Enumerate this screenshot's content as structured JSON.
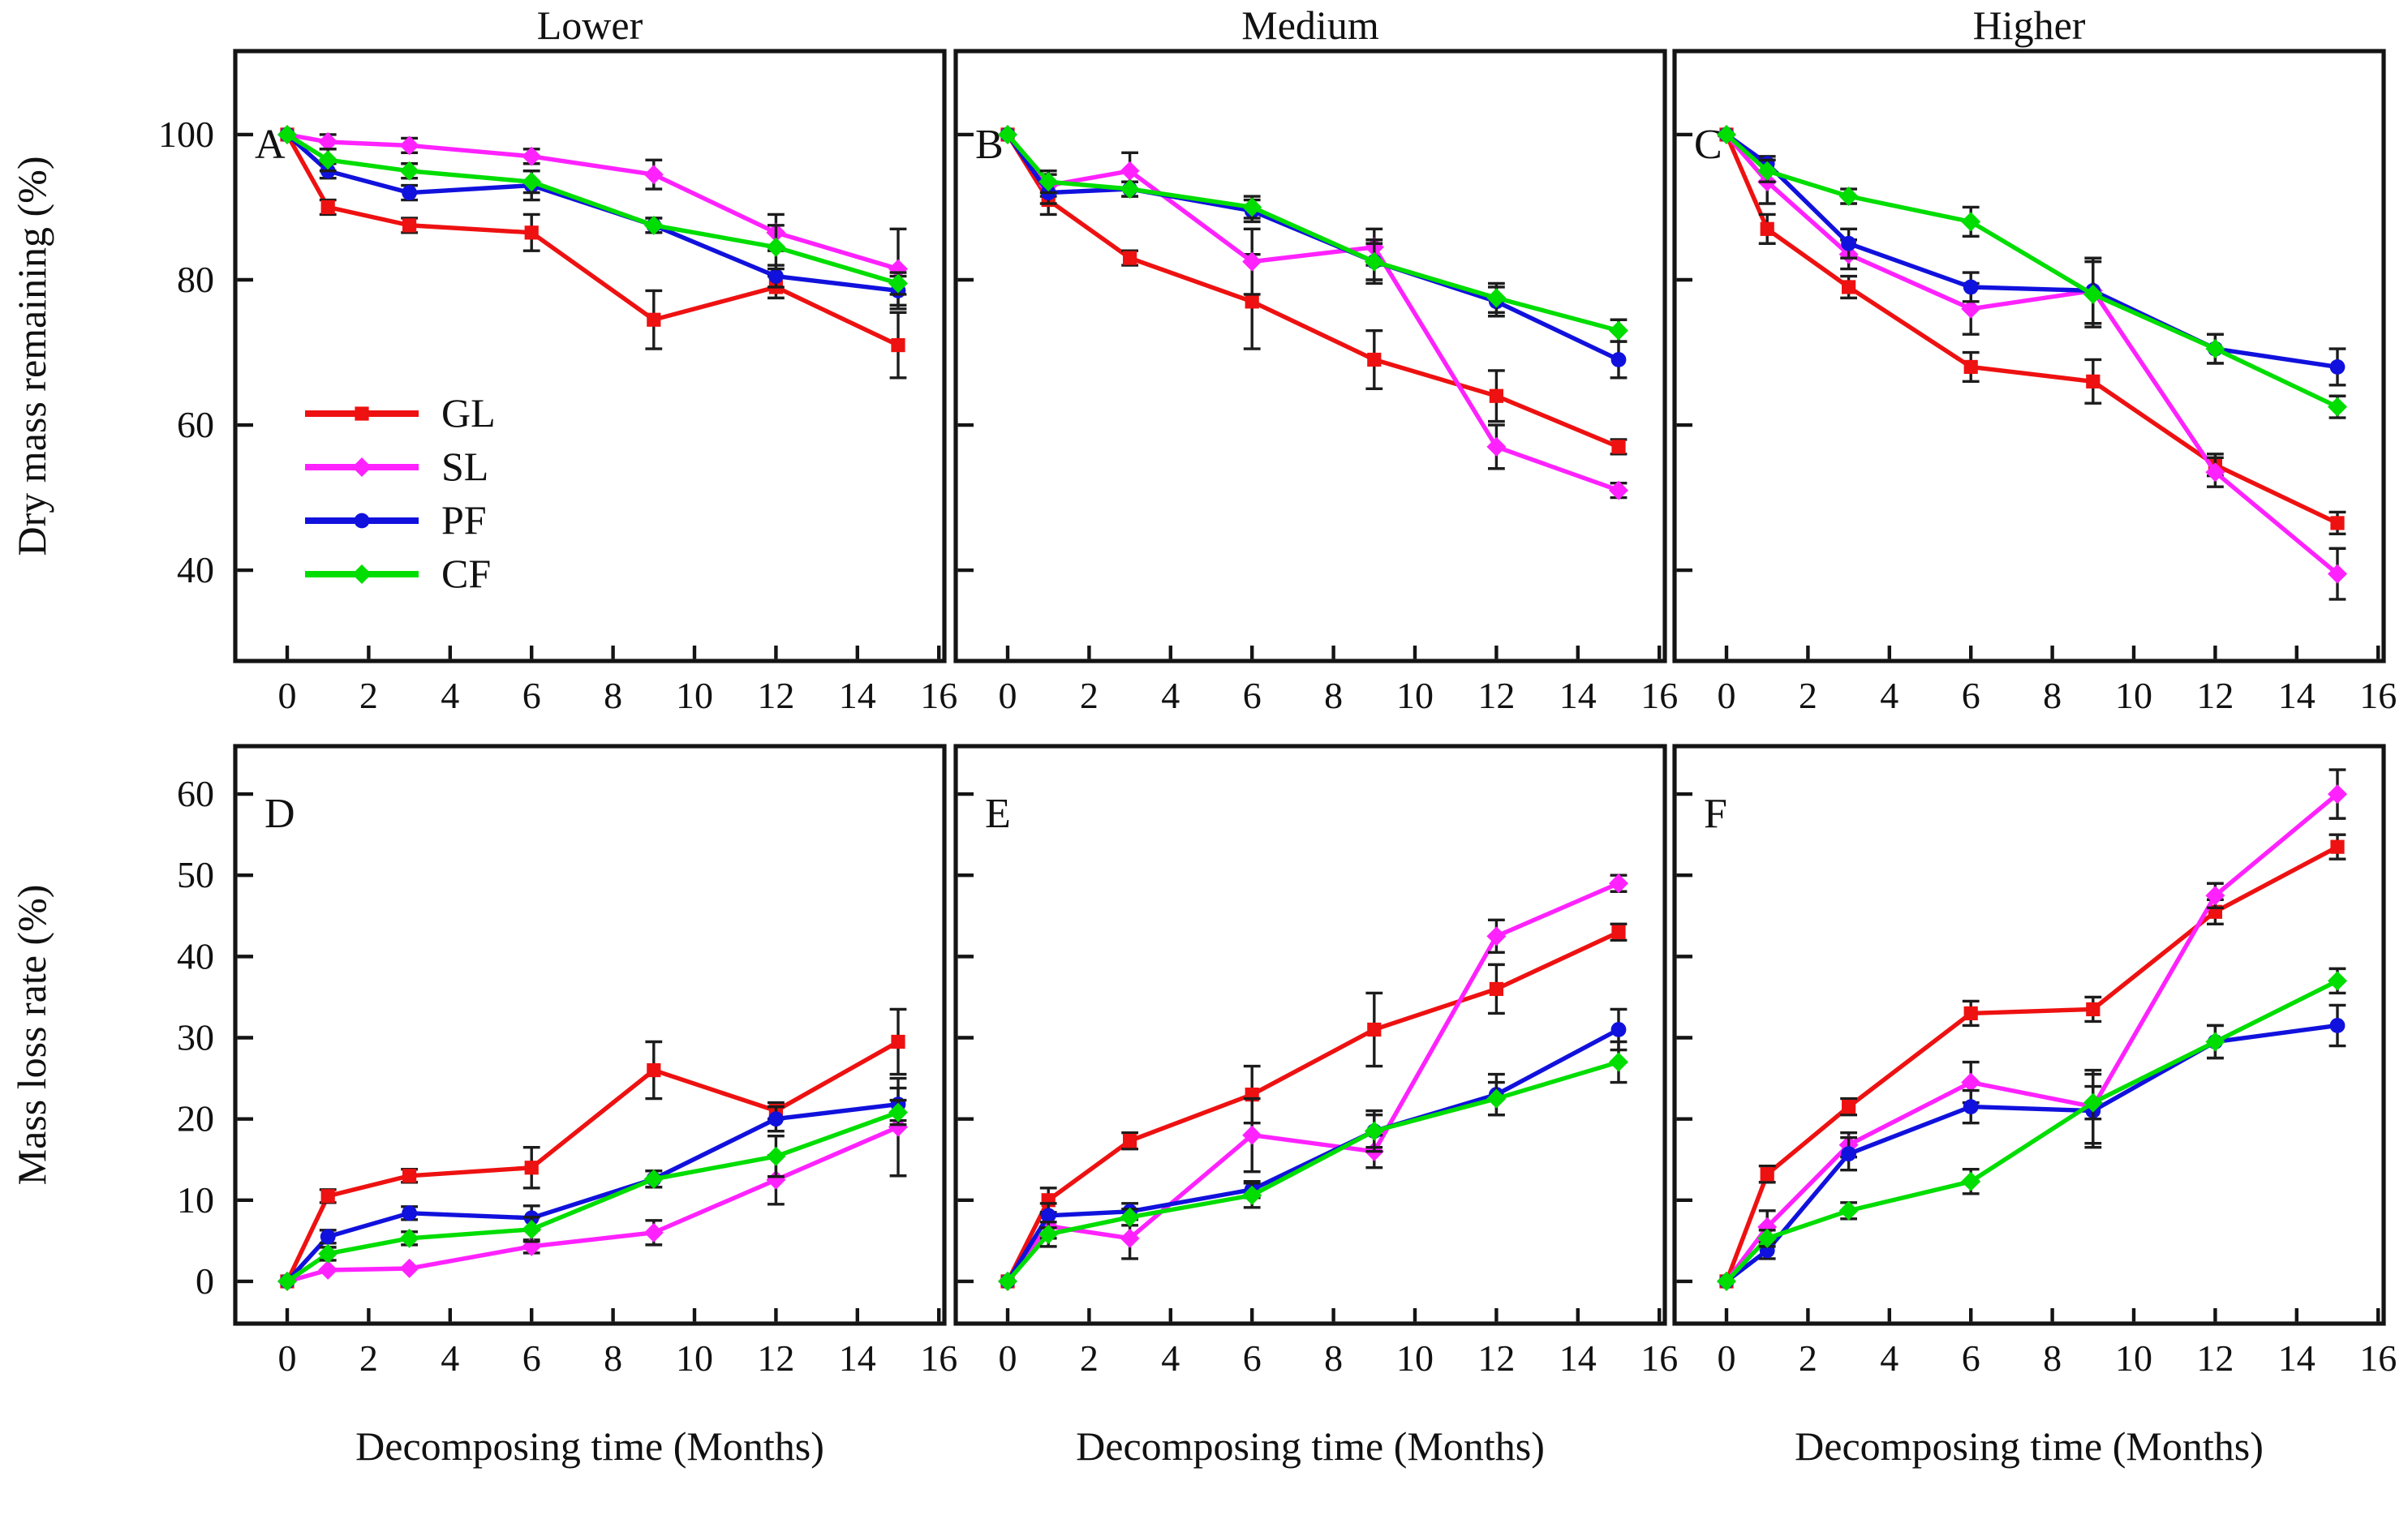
{
  "figure": {
    "column_titles": [
      "Lower",
      "Medium",
      "Higher"
    ],
    "x_axis_label": "Decomposing time (Months)",
    "row1_y_label": "Dry mass remaining (%)",
    "row2_y_label": "Mass loss rate (%)",
    "panel_letters": [
      "A",
      "B",
      "C",
      "D",
      "E",
      "F"
    ],
    "legend": [
      {
        "label": "GL",
        "color": "#ee1111",
        "marker": "square"
      },
      {
        "label": "SL",
        "color": "#ff22ff",
        "marker": "diamond"
      },
      {
        "label": "PF",
        "color": "#1111dd",
        "marker": "circle"
      },
      {
        "label": "CF",
        "color": "#00dd00",
        "marker": "diamond"
      }
    ]
  },
  "chart_data": [
    {
      "id": "A",
      "panel_label": "A",
      "type": "line",
      "title": "Lower",
      "row": 0,
      "col": 0,
      "ylabel": "Dry mass remaining (%)",
      "xlabel": null,
      "x": [
        0,
        1,
        3,
        6,
        9,
        12,
        15
      ],
      "xlim": [
        -1.3,
        16.15
      ],
      "ylim": [
        27.5,
        111.5
      ],
      "xticks": [
        0,
        2,
        4,
        6,
        8,
        10,
        12,
        14,
        16
      ],
      "yticks": [
        40,
        60,
        80,
        100
      ],
      "series": [
        {
          "name": "GL",
          "values": [
            100,
            90,
            87.5,
            86.5,
            74.5,
            79,
            71
          ],
          "errors": [
            0.5,
            1,
            1,
            2.5,
            4,
            1.5,
            4.5
          ]
        },
        {
          "name": "SL",
          "values": [
            100,
            99,
            98.5,
            97,
            94.5,
            86.5,
            81.5
          ],
          "errors": [
            0.5,
            1,
            1,
            1,
            2,
            2.5,
            5.5
          ]
        },
        {
          "name": "PF",
          "values": [
            100,
            95,
            92,
            93,
            87.5,
            80.5,
            78.5
          ],
          "errors": [
            0.5,
            1,
            1,
            2,
            1,
            1.5,
            2
          ]
        },
        {
          "name": "CF",
          "values": [
            100,
            96.5,
            95,
            93.5,
            87.5,
            84.5,
            79.5
          ],
          "errors": [
            0.5,
            1.5,
            1,
            1.5,
            1,
            3,
            1.5
          ]
        }
      ]
    },
    {
      "id": "B",
      "panel_label": "B",
      "type": "line",
      "title": "Medium",
      "row": 0,
      "col": 1,
      "ylabel": "Dry mass remaining (%)",
      "xlabel": null,
      "x": [
        0,
        1,
        3,
        6,
        9,
        12,
        15
      ],
      "xlim": [
        -1.3,
        16.15
      ],
      "ylim": [
        27.5,
        111.5
      ],
      "xticks": [
        0,
        2,
        4,
        6,
        8,
        10,
        12,
        14,
        16
      ],
      "yticks": [
        40,
        60,
        80,
        100
      ],
      "series": [
        {
          "name": "GL",
          "values": [
            100,
            91,
            83,
            77,
            69,
            64,
            57
          ],
          "errors": [
            0.5,
            2,
            1,
            6.5,
            4,
            3.5,
            1
          ]
        },
        {
          "name": "SL",
          "values": [
            100,
            93,
            95,
            82.5,
            84.5,
            57,
            51
          ],
          "errors": [
            0.5,
            1.5,
            2.5,
            4.5,
            2.5,
            3,
            1
          ]
        },
        {
          "name": "PF",
          "values": [
            100,
            92,
            92.5,
            89.5,
            82.5,
            77,
            69
          ],
          "errors": [
            0.5,
            1.5,
            1,
            1.5,
            2.5,
            2,
            2.5
          ]
        },
        {
          "name": "CF",
          "values": [
            100,
            93.5,
            92.5,
            90,
            82.5,
            77.5,
            73
          ],
          "errors": [
            0.5,
            1.5,
            1,
            1.5,
            3,
            2,
            1.5
          ]
        }
      ]
    },
    {
      "id": "C",
      "panel_label": "C",
      "type": "line",
      "title": "Higher",
      "row": 0,
      "col": 2,
      "ylabel": "Dry mass remaining (%)",
      "xlabel": null,
      "x": [
        0,
        1,
        3,
        6,
        9,
        12,
        15
      ],
      "xlim": [
        -1.3,
        16.15
      ],
      "ylim": [
        27.5,
        111.5
      ],
      "xticks": [
        0,
        2,
        4,
        6,
        8,
        10,
        12,
        14,
        16
      ],
      "yticks": [
        40,
        60,
        80,
        100
      ],
      "series": [
        {
          "name": "GL",
          "values": [
            100,
            87,
            79,
            68,
            66,
            54.5,
            46.5
          ],
          "errors": [
            0.5,
            2,
            1.5,
            2,
            3,
            1.5,
            1.5
          ]
        },
        {
          "name": "SL",
          "values": [
            100,
            93.5,
            83.5,
            76,
            78.5,
            53.5,
            39.5
          ],
          "errors": [
            0.5,
            3,
            2,
            3.5,
            4.5,
            2,
            3.5
          ]
        },
        {
          "name": "PF",
          "values": [
            100,
            96,
            85,
            79,
            78.5,
            70.5,
            68
          ],
          "errors": [
            0.5,
            1,
            2,
            2,
            4.5,
            2,
            2.5
          ]
        },
        {
          "name": "CF",
          "values": [
            100,
            95,
            91.5,
            88,
            78,
            70.5,
            62.5
          ],
          "errors": [
            0.5,
            1.5,
            1,
            2,
            4.5,
            2,
            1.5
          ]
        }
      ]
    },
    {
      "id": "D",
      "panel_label": "D",
      "type": "line",
      "title": null,
      "row": 1,
      "col": 0,
      "ylabel": "Mass loss rate (%)",
      "xlabel": "Decomposing time (Months)",
      "x": [
        0,
        1,
        3,
        6,
        9,
        12,
        15
      ],
      "xlim": [
        -1.3,
        16.15
      ],
      "ylim": [
        -5.2,
        65.9
      ],
      "xticks": [
        0,
        2,
        4,
        6,
        8,
        10,
        12,
        14,
        16
      ],
      "yticks": [
        0,
        10,
        20,
        30,
        40,
        50,
        60
      ],
      "series": [
        {
          "name": "GL",
          "values": [
            0,
            10.5,
            13,
            14,
            26,
            21,
            29.5
          ],
          "errors": [
            0.3,
            0.8,
            0.8,
            2.5,
            3.5,
            1,
            4
          ]
        },
        {
          "name": "SL",
          "values": [
            0,
            1.4,
            1.6,
            4.3,
            6,
            12.5,
            19
          ],
          "errors": [
            0.3,
            0.5,
            0.5,
            0.8,
            1.5,
            3,
            6
          ]
        },
        {
          "name": "PF",
          "values": [
            0,
            5.5,
            8.4,
            7.8,
            12.6,
            20,
            21.8
          ],
          "errors": [
            0.3,
            0.8,
            0.8,
            1.5,
            1,
            1.5,
            2
          ]
        },
        {
          "name": "CF",
          "values": [
            0,
            3.4,
            5.3,
            6.4,
            12.6,
            15.4,
            20.8
          ],
          "errors": [
            0.3,
            0.8,
            0.8,
            1.5,
            1,
            2.5,
            1.5
          ]
        }
      ]
    },
    {
      "id": "E",
      "panel_label": "E",
      "type": "line",
      "title": null,
      "row": 1,
      "col": 1,
      "ylabel": "Mass loss rate (%)",
      "xlabel": "Decomposing time (Months)",
      "x": [
        0,
        1,
        3,
        6,
        9,
        12,
        15
      ],
      "xlim": [
        -1.3,
        16.15
      ],
      "ylim": [
        -5.2,
        65.9
      ],
      "xticks": [
        0,
        2,
        4,
        6,
        8,
        10,
        12,
        14,
        16
      ],
      "yticks": [
        0,
        10,
        20,
        30,
        40,
        50,
        60
      ],
      "series": [
        {
          "name": "GL",
          "values": [
            0,
            10,
            17.3,
            23,
            31,
            36,
            43
          ],
          "errors": [
            0.3,
            1.5,
            1,
            3.5,
            4.5,
            3,
            1
          ]
        },
        {
          "name": "SL",
          "values": [
            0,
            6.8,
            5.3,
            18,
            16,
            42.5,
            49
          ],
          "errors": [
            0.3,
            1.5,
            2.5,
            4.5,
            2,
            2,
            1
          ]
        },
        {
          "name": "PF",
          "values": [
            0,
            8.1,
            8.6,
            11.3,
            18.5,
            23,
            31
          ],
          "errors": [
            0.3,
            1.5,
            1,
            1,
            2,
            2.5,
            2.5
          ]
        },
        {
          "name": "CF",
          "values": [
            0,
            5.8,
            7.9,
            10.6,
            18.5,
            22.5,
            27
          ],
          "errors": [
            0.3,
            1.5,
            1,
            1.5,
            2.5,
            2,
            2.5
          ]
        }
      ]
    },
    {
      "id": "F",
      "panel_label": "F",
      "type": "line",
      "title": null,
      "row": 1,
      "col": 2,
      "ylabel": "Mass loss rate (%)",
      "xlabel": "Decomposing time (Months)",
      "x": [
        0,
        1,
        3,
        6,
        9,
        12,
        15
      ],
      "xlim": [
        -1.3,
        16.15
      ],
      "ylim": [
        -5.2,
        65.9
      ],
      "xticks": [
        0,
        2,
        4,
        6,
        8,
        10,
        12,
        14,
        16
      ],
      "yticks": [
        0,
        10,
        20,
        30,
        40,
        50,
        60
      ],
      "series": [
        {
          "name": "GL",
          "values": [
            0,
            13.2,
            21.5,
            33,
            33.5,
            45.5,
            53.5
          ],
          "errors": [
            0.3,
            1,
            1,
            1.5,
            1.5,
            1.5,
            1.5
          ]
        },
        {
          "name": "SL",
          "values": [
            0,
            6.7,
            16.8,
            24.5,
            21.5,
            47.5,
            60
          ],
          "errors": [
            0.3,
            2,
            1.5,
            2.5,
            4.5,
            1.5,
            3
          ]
        },
        {
          "name": "PF",
          "values": [
            0,
            3.8,
            15.7,
            21.5,
            21,
            29.5,
            31.5
          ],
          "errors": [
            0.3,
            1,
            2,
            2,
            4.5,
            2,
            2.5
          ]
        },
        {
          "name": "CF",
          "values": [
            0,
            5.3,
            8.7,
            12.3,
            22,
            29.5,
            37
          ],
          "errors": [
            0.3,
            1,
            1,
            1.5,
            2,
            2,
            1.5
          ]
        }
      ]
    }
  ]
}
